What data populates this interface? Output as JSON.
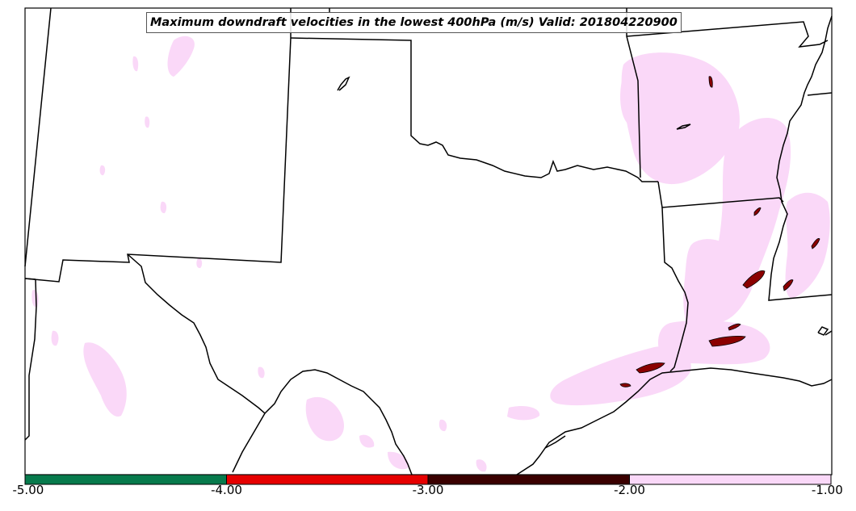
{
  "title": "Maximum downdraft velocities in the lowest 400hPa (m/s) Valid: 201804220900",
  "colorbar": {
    "ticks": [
      "-5.00",
      "-4.00",
      "-3.00",
      "-2.00",
      "-1.00"
    ],
    "bins": [
      {
        "from": -5.0,
        "to": -4.0,
        "color": "#077a4c"
      },
      {
        "from": -4.0,
        "to": -3.0,
        "color": "#e60000"
      },
      {
        "from": -3.0,
        "to": -2.0,
        "color": "#3a0000"
      },
      {
        "from": -2.0,
        "to": -1.0,
        "color": "#fad8f8"
      }
    ]
  },
  "colors": {
    "light_downdraft": "#fad8f8",
    "strong_downdraft": "#8b0000",
    "boundary": "#000000"
  }
}
